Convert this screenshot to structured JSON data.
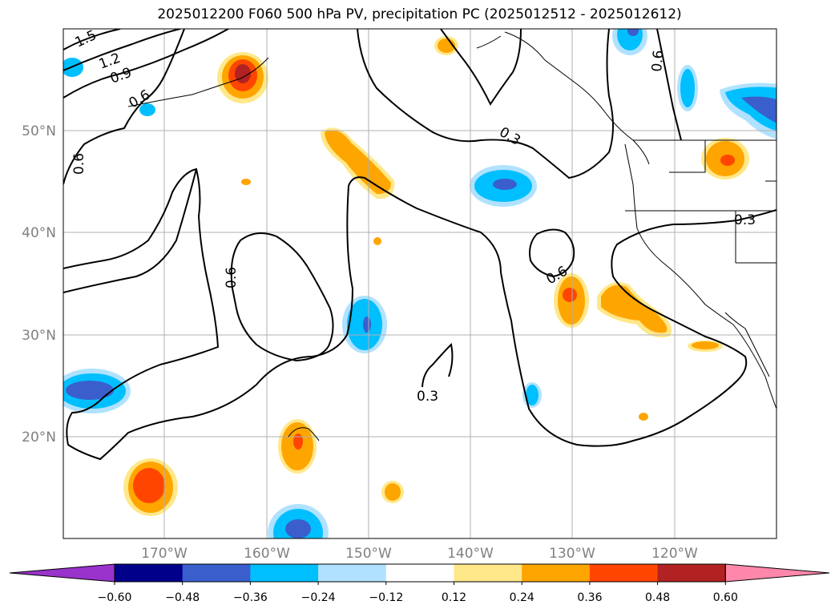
{
  "title": "2025012200 F060 500 hPa PV, precipitation PC (2025012512 - 2025012612)",
  "map": {
    "lat_labels": [
      "50°N",
      "40°N",
      "30°N",
      "20°N"
    ],
    "lon_labels": [
      "170°W",
      "160°W",
      "150°W",
      "140°W",
      "130°W",
      "120°W"
    ],
    "contour_labels": [
      "1.5",
      "1.2",
      "0.9",
      "0.6",
      "0.6",
      "0.3",
      "0.6",
      "0.6",
      "0.6",
      "0.3",
      "0.3"
    ]
  },
  "colorbar": {
    "ticks": [
      "−0.60",
      "−0.48",
      "−0.36",
      "−0.24",
      "−0.12",
      "0.12",
      "0.24",
      "0.36",
      "0.48",
      "0.60"
    ],
    "colors": [
      "#9933cc",
      "#00008b",
      "#3a5fcd",
      "#00bfff",
      "#b0e2ff",
      "#ffffff",
      "#ffe88a",
      "#ffa500",
      "#ff4500",
      "#b22222",
      "#ff88aa"
    ]
  }
}
